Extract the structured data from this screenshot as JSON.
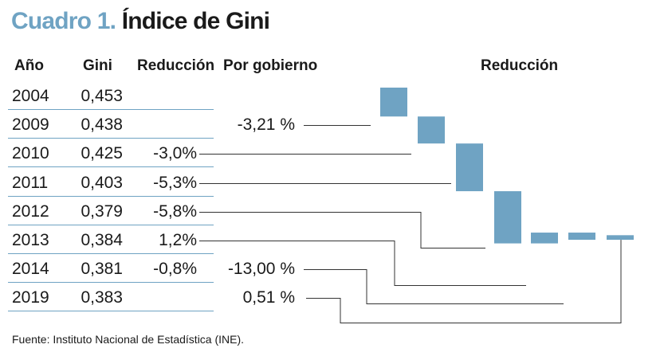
{
  "header": {
    "label": "Cuadro 1.",
    "title": "Índice de Gini"
  },
  "table": {
    "columns": [
      "Año",
      "Gini",
      "Reducción",
      "Por gobierno"
    ],
    "rows": [
      {
        "year": "2004",
        "gini": "0,453",
        "reduction": "",
        "government": ""
      },
      {
        "year": "2009",
        "gini": "0,438",
        "reduction": "",
        "government": "-3,21 %"
      },
      {
        "year": "2010",
        "gini": "0,425",
        "reduction": "-3,0%",
        "government": ""
      },
      {
        "year": "2011",
        "gini": "0,403",
        "reduction": "-5,3%",
        "government": ""
      },
      {
        "year": "2012",
        "gini": "0,379",
        "reduction": "-5,8%",
        "government": ""
      },
      {
        "year": "2013",
        "gini": "0,384",
        "reduction": "1,2%",
        "government": ""
      },
      {
        "year": "2014",
        "gini": "0,381",
        "reduction": "-0,8%",
        "government": "-13,00 %"
      },
      {
        "year": "2019",
        "gini": "0,383",
        "reduction": "",
        "government": "0,51 %"
      }
    ]
  },
  "chart_data": {
    "type": "waterfall",
    "title": "Reducción",
    "bars": [
      {
        "year": "2009",
        "change_pct": -3.21
      },
      {
        "year": "2010",
        "change_pct": -3.0
      },
      {
        "year": "2011",
        "change_pct": -5.3
      },
      {
        "year": "2012",
        "change_pct": -5.8
      },
      {
        "year": "2013",
        "change_pct": 1.2
      },
      {
        "year": "2014",
        "change_pct": -0.8
      },
      {
        "year": "2019",
        "change_pct": 0.51
      }
    ],
    "bar_color": "#6fa3c3",
    "line_color": "#333333"
  },
  "footer": {
    "source": "Fuente: Instituto Nacional de Estadística (INE)."
  }
}
